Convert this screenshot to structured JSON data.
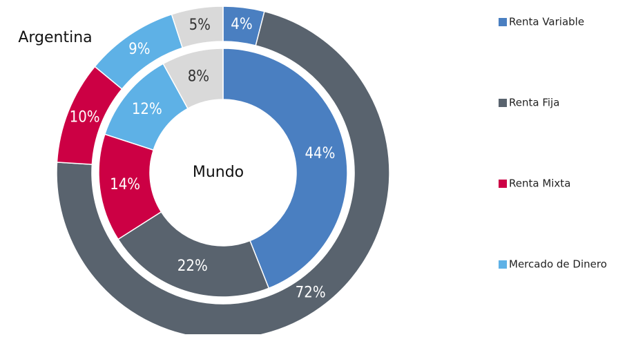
{
  "chart_data": {
    "type": "pie",
    "categories": [
      "Renta Variable",
      "Renta Fija",
      "Renta Mixta",
      "Mercado de Dinero",
      null
    ],
    "colors": [
      "#4a7fc1",
      "#59636e",
      "#cc0044",
      "#5eb1e6",
      "#d9d9d9"
    ],
    "series": [
      {
        "name": "Argentina",
        "values": [
          4,
          72,
          10,
          9,
          5
        ],
        "value_labels": [
          "4%",
          "72%",
          "10%",
          "9%",
          "5%"
        ]
      },
      {
        "name": "Mundo",
        "values": [
          44,
          22,
          14,
          12,
          8
        ],
        "value_labels": [
          "44%",
          "22%",
          "14%",
          "12%",
          "8%"
        ]
      }
    ]
  }
}
